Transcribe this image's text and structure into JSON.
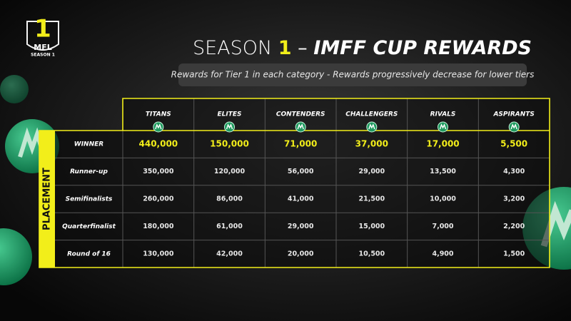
{
  "logo": {
    "number": "1",
    "name": "MFL",
    "season": "SEASON 1"
  },
  "title": {
    "part1": "SEASON ",
    "number": "1",
    "dash": " – ",
    "part2": "IMFF CUP REWARDS"
  },
  "subtitle": "Rewards for Tier 1 in each category - Rewards progressively decrease for lower tiers",
  "table": {
    "side_label": "PLACEMENT",
    "columns": [
      "TITANS",
      "ELITES",
      "CONTENDERS",
      "CHALLENGERS",
      "RIVALS",
      "ASPIRANTS"
    ],
    "rows": [
      {
        "label": "WINNER",
        "cells": [
          "440,000",
          "150,000",
          "71,000",
          "37,000",
          "17,000",
          "5,500"
        ]
      },
      {
        "label": "Runner-up",
        "cells": [
          "350,000",
          "120,000",
          "56,000",
          "29,000",
          "13,500",
          "4,300"
        ]
      },
      {
        "label": "Semifinalists",
        "cells": [
          "260,000",
          "86,000",
          "41,000",
          "21,500",
          "10,000",
          "3,200"
        ]
      },
      {
        "label": "Quarterfinalist",
        "cells": [
          "180,000",
          "61,000",
          "29,000",
          "15,000",
          "7,000",
          "2,200"
        ]
      },
      {
        "label": "Round of 16",
        "cells": [
          "130,000",
          "42,000",
          "20,000",
          "10,500",
          "4,900",
          "1,500"
        ]
      }
    ]
  }
}
